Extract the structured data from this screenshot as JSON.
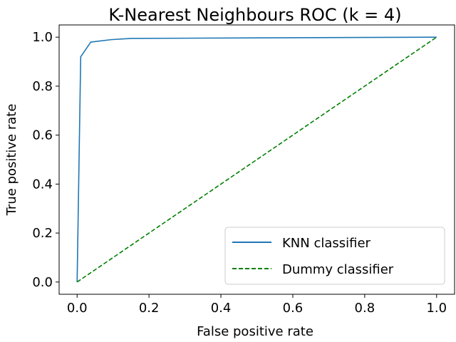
{
  "chart_data": {
    "type": "line",
    "title": "K-Nearest Neighbours ROC (k = 4)",
    "xlabel": "False positive rate",
    "ylabel": "True positive rate",
    "xlim": [
      -0.05,
      1.05
    ],
    "ylim": [
      -0.05,
      1.05
    ],
    "xticks": [
      "0.0",
      "0.2",
      "0.4",
      "0.6",
      "0.8",
      "1.0"
    ],
    "yticks": [
      "0.0",
      "0.2",
      "0.4",
      "0.6",
      "0.8",
      "1.0"
    ],
    "grid": false,
    "legend_position": "lower right",
    "series": [
      {
        "name": "KNN classifier",
        "color": "#1f77b4",
        "style": "solid",
        "x": [
          0.0,
          0.01,
          0.038,
          0.095,
          0.15,
          1.0
        ],
        "y": [
          0.0,
          0.92,
          0.98,
          0.99,
          0.995,
          1.0
        ]
      },
      {
        "name": "Dummy classifier",
        "color": "#008000",
        "style": "dashed",
        "x": [
          0.0,
          1.0
        ],
        "y": [
          0.0,
          1.0
        ]
      }
    ]
  }
}
